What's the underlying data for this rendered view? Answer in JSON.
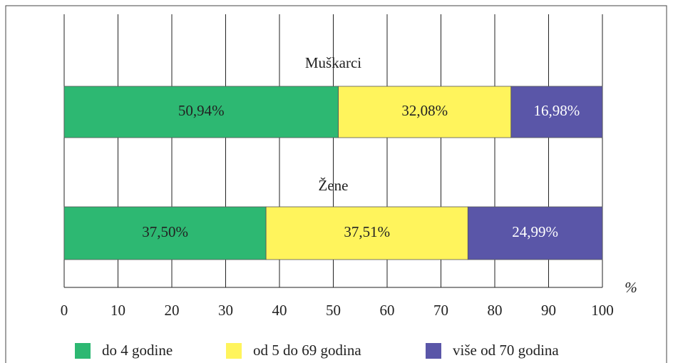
{
  "chart_data": {
    "type": "stacked-bar-horizontal",
    "categories": [
      "Muškarci",
      "Žene"
    ],
    "series": [
      {
        "name": "do 4 godine",
        "color": "#2db872",
        "values": [
          50.94,
          37.5
        ],
        "value_labels": [
          "50,94%",
          "37,50%"
        ]
      },
      {
        "name": "od 5 do 69 godina",
        "color": "#fff45c",
        "values": [
          32.08,
          37.51
        ],
        "value_labels": [
          "32,08%",
          "37,51%"
        ]
      },
      {
        "name": "više od 70 godina",
        "color": "#5a56a8",
        "values": [
          16.98,
          24.99
        ],
        "value_labels": [
          "16,98%",
          "24,99%"
        ]
      }
    ],
    "x_label": "%",
    "xlim": [
      0,
      100
    ],
    "xticks": [
      0,
      10,
      20,
      30,
      40,
      50,
      60,
      70,
      80,
      90,
      100
    ],
    "grid": true
  }
}
